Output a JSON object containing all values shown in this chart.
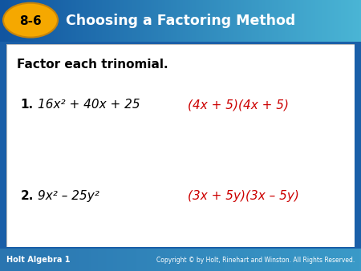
{
  "header_bg_top": "#1a5fa8",
  "header_bg_bottom": "#4ab8d8",
  "header_text_color": "#ffffff",
  "badge_color": "#f5a800",
  "badge_text": "8-6",
  "header_title": "Choosing a Factoring Method",
  "footer_bg_color": "#3a8abf",
  "footer_left": "Holt Algebra 1",
  "footer_right": "Copyright © by Holt, Rinehart and Winston. All Rights Reserved.",
  "content_bg": "#ffffff",
  "instruction_text": "Factor each trinomial.",
  "problem1_num": "1.",
  "problem1_expr": "16x² + 40x + 25",
  "problem1_answer": "(4x + 5)(4x + 5)",
  "problem2_num": "2.",
  "problem2_expr": "9x² – 25y²",
  "problem2_answer": "(3x + 5y)(3x – 5y)",
  "answer_color": "#cc0000",
  "text_color": "#000000",
  "figure_width": 4.5,
  "figure_height": 3.38,
  "dpi": 100
}
